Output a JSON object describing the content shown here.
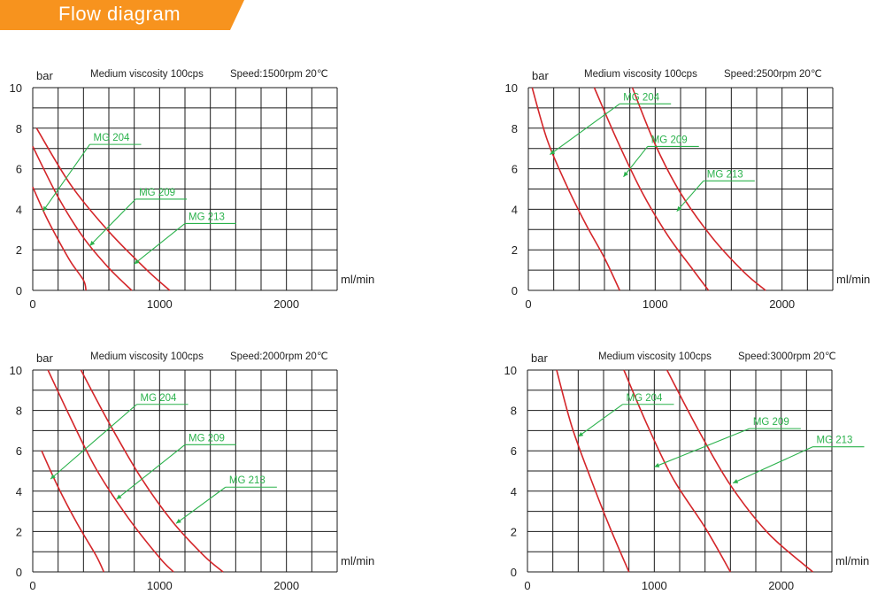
{
  "header": {
    "title": "Flow diagram",
    "banner_color": "#f7931e"
  },
  "colors": {
    "grid": "#1a1a1a",
    "curve": "#d4262a",
    "label": "#2bb24c",
    "text": "#222222"
  },
  "chart_data": [
    {
      "type": "line",
      "title": "Medium viscosity 100cps",
      "subtitle": "Speed:1500rpm 20℃",
      "xlabel": "ml/min",
      "ylabel": "bar",
      "xlim": [
        0,
        2400
      ],
      "ylim": [
        0,
        10
      ],
      "xticks": [
        0,
        1000,
        2000
      ],
      "yticks": [
        0,
        2,
        4,
        6,
        8,
        10
      ],
      "grid": true,
      "series": [
        {
          "name": "MG 204",
          "points": [
            [
              0,
              5.1
            ],
            [
              100,
              3.7
            ],
            [
              200,
              2.5
            ],
            [
              300,
              1.4
            ],
            [
              400,
              0.5
            ],
            [
              420,
              0
            ]
          ]
        },
        {
          "name": "MG 209",
          "points": [
            [
              0,
              7.1
            ],
            [
              200,
              4.6
            ],
            [
              400,
              2.6
            ],
            [
              600,
              1.1
            ],
            [
              780,
              0
            ]
          ]
        },
        {
          "name": "MG 213",
          "points": [
            [
              30,
              8.0
            ],
            [
              300,
              5.2
            ],
            [
              600,
              2.9
            ],
            [
              900,
              1.0
            ],
            [
              1080,
              0
            ]
          ]
        }
      ],
      "annotations": [
        {
          "text": "MG 204",
          "point": [
            80,
            3.9
          ],
          "at": [
            450,
            7.2
          ]
        },
        {
          "text": "MG 209",
          "point": [
            450,
            2.2
          ],
          "at": [
            810,
            4.5
          ]
        },
        {
          "text": "MG 213",
          "point": [
            800,
            1.3
          ],
          "at": [
            1200,
            3.3
          ]
        }
      ]
    },
    {
      "type": "line",
      "title": "Medium viscosity 100cps",
      "subtitle": "Speed:2500rpm 20℃",
      "xlabel": "ml/min",
      "ylabel": "bar",
      "xlim": [
        0,
        2400
      ],
      "ylim": [
        0,
        10
      ],
      "xticks": [
        0,
        1000,
        2000
      ],
      "yticks": [
        0,
        2,
        4,
        6,
        8,
        10
      ],
      "grid": true,
      "series": [
        {
          "name": "MG 204",
          "points": [
            [
              30,
              10
            ],
            [
              150,
              7.4
            ],
            [
              300,
              5.2
            ],
            [
              450,
              3.3
            ],
            [
              600,
              1.6
            ],
            [
              720,
              0
            ]
          ]
        },
        {
          "name": "MG 209",
          "points": [
            [
              520,
              10
            ],
            [
              700,
              7.4
            ],
            [
              900,
              4.8
            ],
            [
              1100,
              2.7
            ],
            [
              1300,
              1.0
            ],
            [
              1420,
              0
            ]
          ]
        },
        {
          "name": "MG 213",
          "points": [
            [
              820,
              10
            ],
            [
              1000,
              7.2
            ],
            [
              1200,
              4.8
            ],
            [
              1450,
              2.6
            ],
            [
              1700,
              0.9
            ],
            [
              1870,
              0
            ]
          ]
        }
      ],
      "annotations": [
        {
          "text": "MG 204",
          "point": [
            170,
            6.7
          ],
          "at": [
            720,
            9.2
          ]
        },
        {
          "text": "MG 209",
          "point": [
            750,
            5.6
          ],
          "at": [
            940,
            7.1
          ]
        },
        {
          "text": "MG 213",
          "point": [
            1170,
            3.9
          ],
          "at": [
            1380,
            5.4
          ]
        }
      ]
    },
    {
      "type": "line",
      "title": "Medium viscosity 100cps",
      "subtitle": "Speed:2000rpm 20℃",
      "xlabel": "ml/min",
      "ylabel": "bar",
      "xlim": [
        0,
        2400
      ],
      "ylim": [
        0,
        10
      ],
      "xticks": [
        0,
        1000,
        2000
      ],
      "yticks": [
        0,
        2,
        4,
        6,
        8,
        10
      ],
      "grid": true,
      "series": [
        {
          "name": "MG 204",
          "points": [
            [
              70,
              6.0
            ],
            [
              200,
              4.2
            ],
            [
              350,
              2.4
            ],
            [
              500,
              0.8
            ],
            [
              560,
              0
            ]
          ]
        },
        {
          "name": "MG 209",
          "points": [
            [
              120,
              10
            ],
            [
              300,
              7.6
            ],
            [
              500,
              5.1
            ],
            [
              750,
              2.7
            ],
            [
              1000,
              0.7
            ],
            [
              1110,
              0
            ]
          ]
        },
        {
          "name": "MG 213",
          "points": [
            [
              380,
              10
            ],
            [
              600,
              7.4
            ],
            [
              850,
              4.7
            ],
            [
              1100,
              2.5
            ],
            [
              1350,
              0.8
            ],
            [
              1500,
              0
            ]
          ]
        }
      ],
      "annotations": [
        {
          "text": "MG 204",
          "point": [
            140,
            4.6
          ],
          "at": [
            820,
            8.3
          ]
        },
        {
          "text": "MG 209",
          "point": [
            660,
            3.6
          ],
          "at": [
            1200,
            6.3
          ]
        },
        {
          "text": "MG 213",
          "point": [
            1130,
            2.4
          ],
          "at": [
            1520,
            4.2
          ]
        }
      ]
    },
    {
      "type": "line",
      "title": "Medium viscosity 100cps",
      "subtitle": "Speed:3000rpm 20℃",
      "xlabel": "ml/min",
      "ylabel": "bar",
      "xlim": [
        0,
        2400
      ],
      "ylim": [
        0,
        10
      ],
      "xticks": [
        0,
        1000,
        2000
      ],
      "yticks": [
        0,
        2,
        4,
        6,
        8,
        10
      ],
      "grid": true,
      "series": [
        {
          "name": "MG 204",
          "points": [
            [
              230,
              10
            ],
            [
              350,
              7.2
            ],
            [
              500,
              4.6
            ],
            [
              650,
              2.2
            ],
            [
              800,
              0
            ]
          ]
        },
        {
          "name": "MG 209",
          "points": [
            [
              760,
              10
            ],
            [
              950,
              7.2
            ],
            [
              1150,
              4.6
            ],
            [
              1400,
              2.2
            ],
            [
              1600,
              0
            ]
          ]
        },
        {
          "name": "MG 213",
          "points": [
            [
              1100,
              10
            ],
            [
              1350,
              7.0
            ],
            [
              1600,
              4.3
            ],
            [
              1900,
              1.9
            ],
            [
              2250,
              0
            ]
          ]
        }
      ],
      "annotations": [
        {
          "text": "MG 204",
          "point": [
            400,
            6.7
          ],
          "at": [
            750,
            8.3
          ]
        },
        {
          "text": "MG 209",
          "point": [
            1000,
            5.2
          ],
          "at": [
            1750,
            7.1
          ]
        },
        {
          "text": "MG 213",
          "point": [
            1620,
            4.4
          ],
          "at": [
            2250,
            6.2
          ]
        }
      ]
    }
  ]
}
